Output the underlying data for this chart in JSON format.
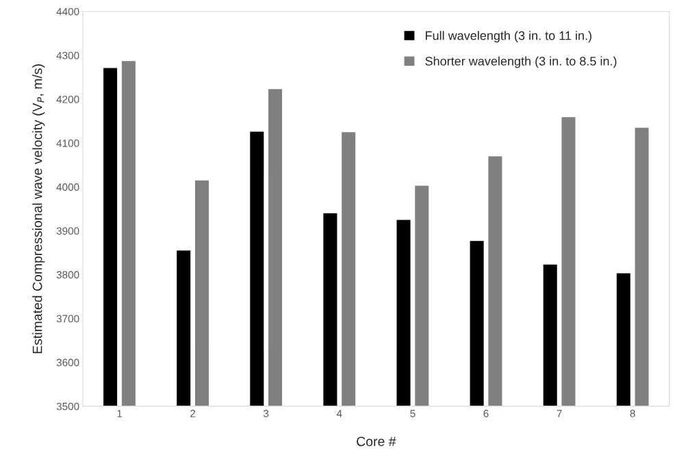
{
  "chart_data": {
    "type": "bar",
    "xlabel": "Core #",
    "ylabel": "Estimated Compressional wave velocity (V$_{P}$, m/s)",
    "categories": [
      "1",
      "2",
      "3",
      "4",
      "5",
      "6",
      "7",
      "8"
    ],
    "series": [
      {
        "name": "Full wavelength (3 in. to 11 in.)",
        "color": "#000000",
        "values": [
          4272,
          3856,
          4127,
          3941,
          3926,
          3878,
          3824,
          3804
        ]
      },
      {
        "name": "Shorter wavelength (3 in. to 8.5 in.)",
        "color": "#808080",
        "values": [
          4288,
          4016,
          4224,
          4126,
          4004,
          4071,
          4160,
          4136
        ]
      }
    ],
    "ylim": [
      3500,
      4400
    ],
    "yticks": [
      3500,
      3600,
      3700,
      3800,
      3900,
      4000,
      4100,
      4200,
      4300,
      4400
    ],
    "grid": false,
    "legend": "top right"
  }
}
